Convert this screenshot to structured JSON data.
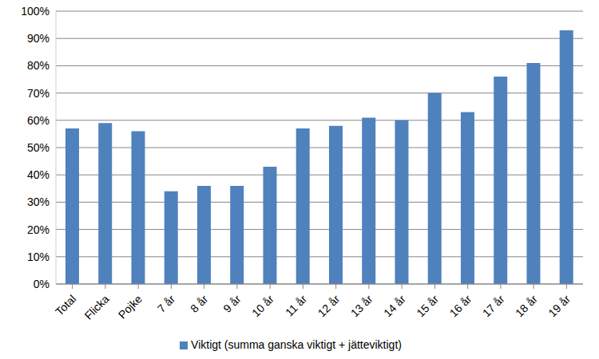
{
  "chart_data": {
    "type": "bar",
    "categories": [
      "Total",
      "Flicka",
      "Pojke",
      "7 år",
      "8 år",
      "9 år",
      "10 år",
      "11 år",
      "12 år",
      "13 år",
      "14 år",
      "15 år",
      "16 år",
      "17 år",
      "18 år",
      "19 år"
    ],
    "series": [
      {
        "name": "Viktigt (summa ganska viktigt + jätteviktigt)",
        "color": "#4f81bd",
        "values": [
          57,
          59,
          56,
          34,
          36,
          36,
          43,
          57,
          58,
          61,
          60,
          70,
          63,
          76,
          81,
          93
        ]
      }
    ],
    "ylim": [
      0,
      100
    ],
    "yticks": [
      {
        "value": 0,
        "label": "0%"
      },
      {
        "value": 10,
        "label": "10%"
      },
      {
        "value": 20,
        "label": "20%"
      },
      {
        "value": 30,
        "label": "30%"
      },
      {
        "value": 40,
        "label": "40%"
      },
      {
        "value": 50,
        "label": "50%"
      },
      {
        "value": 60,
        "label": "60%"
      },
      {
        "value": 70,
        "label": "70%"
      },
      {
        "value": 80,
        "label": "80%"
      },
      {
        "value": 90,
        "label": "90%"
      },
      {
        "value": 100,
        "label": "100%"
      }
    ],
    "grid": true,
    "legend": "bottom"
  }
}
